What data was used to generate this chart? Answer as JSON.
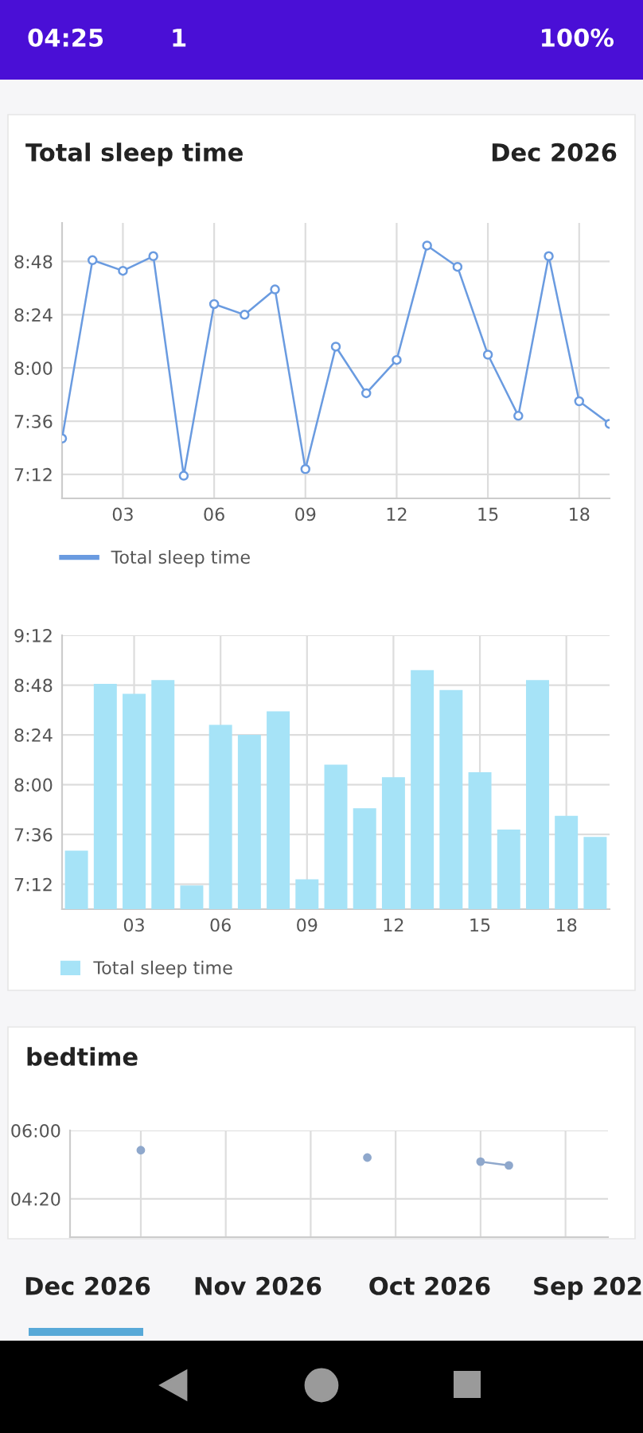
{
  "chart_data": [
    {
      "type": "line",
      "title": "Total sleep time",
      "subtitle": "Dec 2026",
      "x": [
        1,
        2,
        3,
        4,
        5,
        6,
        7,
        8,
        9,
        10,
        11,
        12,
        13,
        14,
        15,
        16,
        17,
        18,
        19
      ],
      "series": [
        {
          "name": "Total sleep time",
          "color": "#6a9be0",
          "values": [
            7.47,
            8.81,
            8.73,
            8.84,
            7.19,
            8.48,
            8.4,
            8.59,
            7.24,
            8.16,
            7.81,
            8.06,
            8.92,
            8.76,
            8.1,
            7.64,
            8.84,
            7.75,
            7.58
          ]
        }
      ],
      "xlim": [
        1,
        19
      ],
      "xticks": [
        {
          "value": 3,
          "label": "03"
        },
        {
          "value": 6,
          "label": "06"
        },
        {
          "value": 9,
          "label": "09"
        },
        {
          "value": 12,
          "label": "12"
        },
        {
          "value": 15,
          "label": "15"
        },
        {
          "value": 18,
          "label": "18"
        }
      ],
      "ylim": [
        7.02,
        9.09
      ],
      "yticks": [
        {
          "value": 7.2,
          "label": "7:12"
        },
        {
          "value": 7.6,
          "label": "7:36"
        },
        {
          "value": 8.0,
          "label": "8:00"
        },
        {
          "value": 8.4,
          "label": "8:24"
        },
        {
          "value": 8.8,
          "label": "8:48"
        }
      ],
      "grid": true,
      "legend": "bottom left",
      "marker": "circle",
      "line_style": "solid"
    },
    {
      "type": "bar",
      "x": [
        1,
        2,
        3,
        4,
        5,
        6,
        7,
        8,
        9,
        10,
        11,
        12,
        13,
        14,
        15,
        16,
        17,
        18,
        19
      ],
      "series": [
        {
          "name": "Total sleep time",
          "color": "#a6e3f7",
          "values": [
            7.47,
            8.81,
            8.73,
            8.84,
            7.19,
            8.48,
            8.4,
            8.59,
            7.24,
            8.16,
            7.81,
            8.06,
            8.92,
            8.76,
            8.1,
            7.64,
            8.84,
            7.75,
            7.58
          ]
        }
      ],
      "xlim": [
        0.5,
        19.5
      ],
      "xticks": [
        {
          "value": 3,
          "label": "03"
        },
        {
          "value": 6,
          "label": "06"
        },
        {
          "value": 9,
          "label": "09"
        },
        {
          "value": 12,
          "label": "12"
        },
        {
          "value": 15,
          "label": "15"
        },
        {
          "value": 18,
          "label": "18"
        }
      ],
      "ylim": [
        7.0,
        9.2
      ],
      "yticks": [
        {
          "value": 7.2,
          "label": "7:12"
        },
        {
          "value": 7.6,
          "label": "7:36"
        },
        {
          "value": 8.0,
          "label": "8:00"
        },
        {
          "value": 8.4,
          "label": "8:24"
        },
        {
          "value": 8.8,
          "label": "8:48"
        },
        {
          "value": 9.2,
          "label": "9:12"
        }
      ],
      "grid": true,
      "legend": "bottom left"
    },
    {
      "type": "line",
      "title": "bedtime",
      "categories": [
        null,
        null,
        null,
        null,
        null,
        null,
        null,
        null,
        null,
        null,
        null,
        null,
        null,
        null,
        null,
        null,
        null,
        null,
        null
      ],
      "series": [
        {
          "color": "#8fa8cc",
          "values": [
            null,
            null,
            5.52,
            null,
            null,
            null,
            null,
            null,
            null,
            null,
            5.34,
            null,
            null,
            null,
            5.24,
            5.15,
            null,
            null,
            null
          ]
        }
      ],
      "ylim": [
        3.4,
        6.0
      ],
      "yticks": [
        {
          "value": 4.333,
          "label": "04:20"
        },
        {
          "value": 6.0,
          "label": "06:00"
        }
      ],
      "grid": true,
      "tick_labels": "y",
      "marker": "circle",
      "line_style": "solid"
    },
    {
      "type": "other",
      "annotations": [
        "04:25",
        "1",
        "100%",
        "Dec 2026",
        "Nov 2026",
        "Oct 2026",
        "Sep 202"
      ]
    }
  ]
}
